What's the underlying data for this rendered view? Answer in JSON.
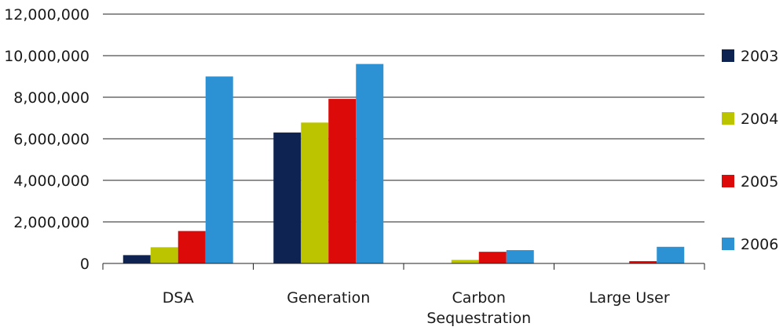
{
  "chart_data": {
    "type": "bar",
    "categories": [
      "DSA",
      "Generation",
      "Carbon\nSequestration",
      "Large User"
    ],
    "series": [
      {
        "name": "2003",
        "color": "#0f2352",
        "values": [
          400000,
          6300000,
          0,
          0
        ]
      },
      {
        "name": "2004",
        "color": "#bcc400",
        "values": [
          780000,
          6780000,
          170000,
          0
        ]
      },
      {
        "name": "2005",
        "color": "#dd0a0a",
        "values": [
          1560000,
          7920000,
          560000,
          110000
        ]
      },
      {
        "name": "2006",
        "color": "#2d92d3",
        "values": [
          9000000,
          9600000,
          640000,
          800000
        ]
      }
    ],
    "y_ticks": [
      "0",
      "2,000,000",
      "4,000,000",
      "6,000,000",
      "8,000,000",
      "10,000,000",
      "12,000,000"
    ],
    "ylim": [
      0,
      12000000
    ],
    "title": "",
    "xlabel": "",
    "ylabel": "",
    "grid": true,
    "legend_position": "right"
  }
}
